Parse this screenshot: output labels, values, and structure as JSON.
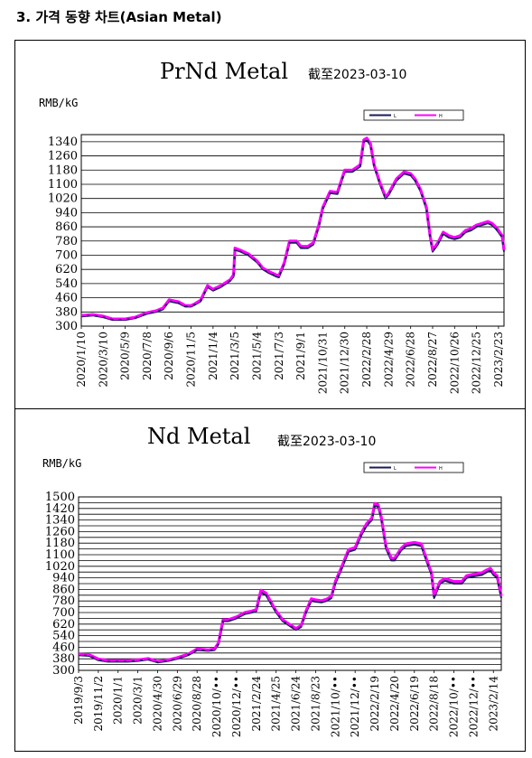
{
  "heading": "3. 가격 동향 차트(Asian Metal)",
  "colors": {
    "low": "#1a1a5e",
    "high": "#ff00ff",
    "grid": "#000000"
  },
  "chart_data": [
    {
      "type": "line",
      "title": "PrNd Metal",
      "subtitle": "截至2023-03-10",
      "ylabel": "RMB/kG",
      "legend": [
        "L",
        "H"
      ],
      "legend_position": "top-right",
      "grid": true,
      "ylim": [
        300,
        1380
      ],
      "yticks": [
        300,
        380,
        460,
        540,
        620,
        700,
        780,
        860,
        940,
        1020,
        1100,
        1180,
        1260,
        1340
      ],
      "xlim": [
        "2020-01-10",
        "2023-03-10"
      ],
      "xticks": [
        {
          "label": "2020/1/10",
          "date": "2020-01-10"
        },
        {
          "label": "2020/3/10",
          "date": "2020-03-10"
        },
        {
          "label": "2020/5/9",
          "date": "2020-05-09"
        },
        {
          "label": "2020/7/8",
          "date": "2020-07-08"
        },
        {
          "label": "2020/9/6",
          "date": "2020-09-06"
        },
        {
          "label": "2020/11/5",
          "date": "2020-11-05"
        },
        {
          "label": "2021/1/4",
          "date": "2021-01-04"
        },
        {
          "label": "2021/3/5",
          "date": "2021-03-05"
        },
        {
          "label": "2021/5/4",
          "date": "2021-05-04"
        },
        {
          "label": "2021/7/3",
          "date": "2021-07-03"
        },
        {
          "label": "2021/9/1",
          "date": "2021-09-01"
        },
        {
          "label": "2021/10/31",
          "date": "2021-10-31"
        },
        {
          "label": "2021/12/30",
          "date": "2021-12-30"
        },
        {
          "label": "2022/2/28",
          "date": "2022-02-28"
        },
        {
          "label": "2022/4/29",
          "date": "2022-04-29"
        },
        {
          "label": "2022/6/28",
          "date": "2022-06-28"
        },
        {
          "label": "2022/8/27",
          "date": "2022-08-27"
        },
        {
          "label": "2022/10/26",
          "date": "2022-10-26"
        },
        {
          "label": "2022/12/25",
          "date": "2022-12-25"
        },
        {
          "label": "2023/2/23",
          "date": "2023-02-23"
        }
      ],
      "x": [
        "2020-01-10",
        "2020-02-10",
        "2020-03-10",
        "2020-04-05",
        "2020-05-09",
        "2020-06-05",
        "2020-06-25",
        "2020-07-08",
        "2020-08-01",
        "2020-08-20",
        "2020-09-06",
        "2020-10-01",
        "2020-10-20",
        "2020-11-05",
        "2020-11-15",
        "2020-12-01",
        "2020-12-20",
        "2021-01-04",
        "2021-01-25",
        "2021-02-20",
        "2021-03-01",
        "2021-03-05",
        "2021-03-20",
        "2021-04-10",
        "2021-05-04",
        "2021-05-20",
        "2021-06-05",
        "2021-06-25",
        "2021-07-03",
        "2021-07-18",
        "2021-08-01",
        "2021-08-20",
        "2021-09-01",
        "2021-09-20",
        "2021-10-05",
        "2021-10-20",
        "2021-10-31",
        "2021-11-20",
        "2021-12-10",
        "2021-12-30",
        "2022-01-20",
        "2022-02-10",
        "2022-02-20",
        "2022-02-28",
        "2022-03-10",
        "2022-03-20",
        "2022-04-05",
        "2022-04-20",
        "2022-04-29",
        "2022-05-20",
        "2022-06-10",
        "2022-06-28",
        "2022-07-10",
        "2022-07-25",
        "2022-08-10",
        "2022-08-20",
        "2022-08-27",
        "2022-09-10",
        "2022-09-25",
        "2022-10-10",
        "2022-10-26",
        "2022-11-10",
        "2022-11-25",
        "2022-12-10",
        "2022-12-25",
        "2023-01-10",
        "2023-01-25",
        "2023-02-05",
        "2023-02-15",
        "2023-02-23",
        "2023-03-05",
        "2023-03-10"
      ],
      "series": [
        {
          "name": "L",
          "values": [
            355,
            360,
            350,
            335,
            335,
            345,
            360,
            370,
            380,
            395,
            440,
            430,
            410,
            410,
            420,
            440,
            520,
            500,
            520,
            555,
            580,
            730,
            720,
            700,
            660,
            620,
            600,
            580,
            575,
            650,
            770,
            770,
            740,
            740,
            760,
            860,
            960,
            1050,
            1045,
            1170,
            1170,
            1200,
            1340,
            1350,
            1320,
            1200,
            1100,
            1020,
            1040,
            1120,
            1160,
            1150,
            1120,
            1060,
            960,
            800,
            720,
            760,
            820,
            800,
            790,
            800,
            830,
            840,
            860,
            870,
            880,
            870,
            850,
            830,
            800,
            720
          ]
        },
        {
          "name": "H",
          "values": [
            360,
            365,
            356,
            340,
            340,
            350,
            366,
            376,
            386,
            402,
            448,
            438,
            416,
            416,
            426,
            446,
            528,
            508,
            528,
            562,
            590,
            740,
            728,
            708,
            668,
            628,
            608,
            590,
            585,
            660,
            780,
            780,
            750,
            750,
            770,
            870,
            970,
            1060,
            1055,
            1180,
            1180,
            1210,
            1350,
            1360,
            1330,
            1210,
            1110,
            1030,
            1050,
            1130,
            1170,
            1160,
            1130,
            1070,
            970,
            810,
            730,
            770,
            830,
            810,
            800,
            810,
            840,
            850,
            870,
            880,
            890,
            880,
            860,
            840,
            810,
            730
          ]
        }
      ]
    },
    {
      "type": "line",
      "title": "Nd Metal",
      "subtitle": "截至2023-03-10",
      "ylabel": "RMB/kG",
      "legend": [
        "L",
        "H"
      ],
      "legend_position": "top-right",
      "grid": true,
      "ylim": [
        300,
        1500
      ],
      "yticks": [
        300,
        340,
        380,
        420,
        460,
        500,
        540,
        580,
        620,
        660,
        700,
        740,
        780,
        820,
        860,
        900,
        940,
        980,
        1020,
        1060,
        1100,
        1140,
        1180,
        1220,
        1260,
        1300,
        1340,
        1380,
        1420,
        1460,
        1500
      ],
      "ytick_labels": [
        "300",
        "380",
        "460",
        "540",
        "620",
        "700",
        "780",
        "860",
        "940",
        "1020",
        "1100",
        "1180",
        "1260",
        "1340",
        "1420",
        "1500"
      ],
      "xlim": [
        "2019-09-03",
        "2023-03-10"
      ],
      "xticks": [
        {
          "label": "2019/9/3",
          "date": "2019-09-03"
        },
        {
          "label": "2019/11/2",
          "date": "2019-11-02"
        },
        {
          "label": "2020/1/1",
          "date": "2020-01-01"
        },
        {
          "label": "2020/3/1",
          "date": "2020-03-01"
        },
        {
          "label": "2020/4/30",
          "date": "2020-04-30"
        },
        {
          "label": "2020/6/29",
          "date": "2020-06-29"
        },
        {
          "label": "2020/8/28",
          "date": "2020-08-28"
        },
        {
          "label": "2020/10/••",
          "date": "2020-10-27"
        },
        {
          "label": "2020/12/••",
          "date": "2020-12-26"
        },
        {
          "label": "2021/2/24",
          "date": "2021-02-24"
        },
        {
          "label": "2021/4/25",
          "date": "2021-04-25"
        },
        {
          "label": "2021/6/24",
          "date": "2021-06-24"
        },
        {
          "label": "2021/8/23",
          "date": "2021-08-23"
        },
        {
          "label": "2021/10/••",
          "date": "2021-10-22"
        },
        {
          "label": "2021/12/••",
          "date": "2021-12-21"
        },
        {
          "label": "2022/2/19",
          "date": "2022-02-19"
        },
        {
          "label": "2022/4/20",
          "date": "2022-04-20"
        },
        {
          "label": "2022/6/19",
          "date": "2022-06-19"
        },
        {
          "label": "2022/8/18",
          "date": "2022-08-18"
        },
        {
          "label": "2022/10/••",
          "date": "2022-10-17"
        },
        {
          "label": "2022/12/••",
          "date": "2022-12-16"
        },
        {
          "label": "2023/2/14",
          "date": "2023-02-14"
        }
      ],
      "x": [
        "2019-09-03",
        "2019-10-05",
        "2019-11-02",
        "2019-12-01",
        "2020-01-01",
        "2020-02-01",
        "2020-03-01",
        "2020-04-01",
        "2020-04-30",
        "2020-06-01",
        "2020-06-29",
        "2020-08-01",
        "2020-08-28",
        "2020-10-01",
        "2020-10-20",
        "2020-11-01",
        "2020-11-15",
        "2020-12-01",
        "2020-12-26",
        "2021-01-20",
        "2021-02-10",
        "2021-02-24",
        "2021-03-10",
        "2021-03-25",
        "2021-04-25",
        "2021-05-15",
        "2021-06-10",
        "2021-06-24",
        "2021-07-10",
        "2021-07-25",
        "2021-08-10",
        "2021-08-23",
        "2021-09-10",
        "2021-09-25",
        "2021-10-10",
        "2021-10-22",
        "2021-11-10",
        "2021-12-01",
        "2021-12-21",
        "2022-01-10",
        "2022-01-25",
        "2022-02-10",
        "2022-02-19",
        "2022-03-01",
        "2022-03-10",
        "2022-03-25",
        "2022-04-10",
        "2022-04-20",
        "2022-05-10",
        "2022-05-25",
        "2022-06-19",
        "2022-07-10",
        "2022-07-25",
        "2022-08-10",
        "2022-08-18",
        "2022-09-05",
        "2022-09-20",
        "2022-10-17",
        "2022-11-10",
        "2022-11-25",
        "2022-12-16",
        "2023-01-10",
        "2023-01-25",
        "2023-02-05",
        "2023-02-14",
        "2023-02-25",
        "2023-03-10"
      ],
      "series": [
        {
          "name": "L",
          "values": [
            405,
            400,
            370,
            360,
            360,
            360,
            365,
            375,
            355,
            365,
            380,
            405,
            440,
            435,
            440,
            480,
            640,
            640,
            660,
            690,
            700,
            710,
            840,
            820,
            700,
            640,
            600,
            580,
            600,
            700,
            780,
            775,
            770,
            780,
            800,
            900,
            1000,
            1120,
            1135,
            1240,
            1300,
            1340,
            1440,
            1430,
            1350,
            1140,
            1060,
            1060,
            1130,
            1160,
            1170,
            1160,
            1060,
            960,
            800,
            900,
            920,
            900,
            900,
            940,
            950,
            960,
            980,
            990,
            960,
            940,
            800
          ]
        },
        {
          "name": "H",
          "values": [
            412,
            408,
            378,
            368,
            368,
            368,
            372,
            382,
            362,
            372,
            388,
            412,
            448,
            442,
            448,
            490,
            650,
            650,
            670,
            700,
            710,
            720,
            855,
            835,
            710,
            650,
            610,
            590,
            610,
            712,
            795,
            788,
            782,
            792,
            812,
            915,
            1015,
            1135,
            1150,
            1255,
            1315,
            1355,
            1455,
            1445,
            1365,
            1155,
            1075,
            1075,
            1145,
            1175,
            1185,
            1175,
            1075,
            975,
            815,
            915,
            935,
            915,
            915,
            955,
            965,
            975,
            995,
            1005,
            975,
            955,
            815
          ]
        }
      ]
    }
  ]
}
